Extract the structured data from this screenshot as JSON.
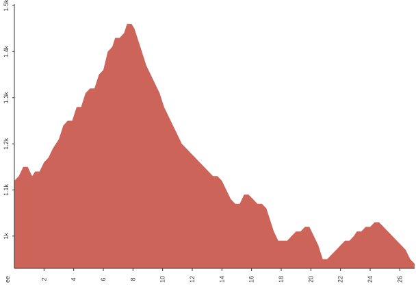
{
  "chart_data": {
    "type": "area",
    "title": "",
    "xlabel": "",
    "ylabel": "",
    "xlim": [
      0,
      27
    ],
    "ylim": [
      0.93,
      1.5
    ],
    "x_ticks": [
      2,
      4,
      6,
      8,
      10,
      12,
      14,
      16,
      18,
      20,
      22,
      24,
      26
    ],
    "x_tick_labels": [
      "2",
      "4",
      "6",
      "8",
      "10",
      "12",
      "14",
      "16",
      "18",
      "20",
      "22",
      "24",
      "26"
    ],
    "x_origin_label": "ee",
    "y_ticks": [
      1.0,
      1.1,
      1.2,
      1.3,
      1.4,
      1.5
    ],
    "y_tick_labels": [
      "1k",
      "1.1k",
      "1.2k",
      "1.3k",
      "1.4k",
      "1.5k"
    ],
    "grid": false,
    "fill_color": "#cd6459",
    "series": [
      {
        "x": [
          0,
          0.3,
          0.6,
          0.9,
          1.2,
          1.4,
          1.7,
          2.0,
          2.3,
          2.6,
          3.0,
          3.3,
          3.6,
          3.9,
          4.2,
          4.5,
          4.8,
          5.1,
          5.4,
          5.7,
          6.0,
          6.3,
          6.6,
          6.8,
          7.1,
          7.4,
          7.6,
          7.9,
          8.1,
          8.3,
          8.5,
          8.7,
          8.9,
          9.2,
          9.5,
          9.8,
          10.1,
          10.4,
          10.7,
          11.0,
          11.3,
          11.6,
          11.9,
          12.2,
          12.5,
          12.8,
          13.1,
          13.4,
          13.7,
          14.0,
          14.3,
          14.6,
          14.9,
          15.2,
          15.5,
          15.8,
          16.1,
          16.4,
          16.7,
          17.0,
          17.2,
          17.5,
          17.8,
          18.1,
          18.4,
          18.7,
          19.0,
          19.3,
          19.6,
          19.9,
          20.2,
          20.5,
          20.8,
          21.1,
          21.4,
          21.7,
          22.0,
          22.3,
          22.6,
          22.9,
          23.1,
          23.4,
          23.7,
          24.0,
          24.3,
          24.6,
          24.9,
          25.2,
          25.5,
          25.8,
          26.1,
          26.4,
          26.7,
          27.0
        ],
        "values": [
          1.12,
          1.13,
          1.15,
          1.15,
          1.13,
          1.14,
          1.14,
          1.16,
          1.17,
          1.19,
          1.21,
          1.24,
          1.25,
          1.25,
          1.28,
          1.28,
          1.31,
          1.32,
          1.32,
          1.35,
          1.36,
          1.4,
          1.41,
          1.43,
          1.43,
          1.44,
          1.46,
          1.46,
          1.45,
          1.43,
          1.41,
          1.39,
          1.37,
          1.35,
          1.33,
          1.31,
          1.28,
          1.26,
          1.24,
          1.22,
          1.2,
          1.19,
          1.18,
          1.17,
          1.16,
          1.15,
          1.14,
          1.13,
          1.13,
          1.12,
          1.1,
          1.08,
          1.07,
          1.07,
          1.09,
          1.09,
          1.08,
          1.07,
          1.07,
          1.06,
          1.04,
          1.01,
          0.99,
          0.99,
          0.99,
          1.0,
          1.01,
          1.01,
          1.02,
          1.02,
          1.0,
          0.98,
          0.95,
          0.95,
          0.96,
          0.97,
          0.98,
          0.99,
          0.99,
          1.0,
          1.01,
          1.01,
          1.02,
          1.02,
          1.03,
          1.03,
          1.02,
          1.01,
          1.0,
          0.99,
          0.98,
          0.97,
          0.95,
          0.94
        ]
      }
    ]
  }
}
